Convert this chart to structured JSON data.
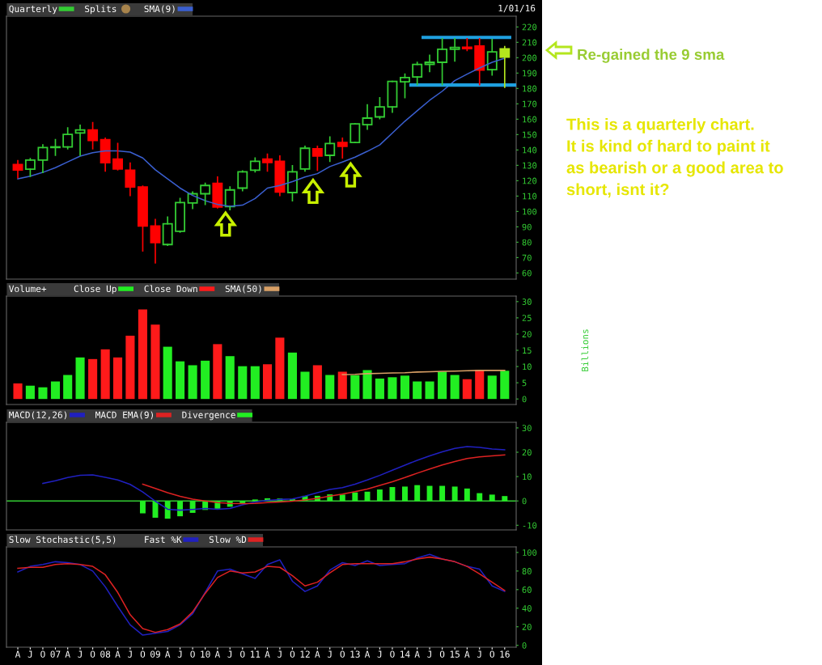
{
  "chart_data": [
    {
      "type": "candlestick",
      "legend": "top left",
      "tick_labels": "y",
      "x": [
        "2006-04",
        "2006-07",
        "2006-10",
        "2007-01",
        "2007-04",
        "2007-07",
        "2007-10",
        "2008-01",
        "2008-04",
        "2008-07",
        "2008-10",
        "2009-01",
        "2009-04",
        "2009-07",
        "2009-10",
        "2010-01",
        "2010-04",
        "2010-07",
        "2010-10",
        "2011-01",
        "2011-04",
        "2011-07",
        "2011-10",
        "2012-01",
        "2012-04",
        "2012-07",
        "2012-10",
        "2013-01",
        "2013-04",
        "2013-07",
        "2013-10",
        "2014-01",
        "2014-04",
        "2014-07",
        "2014-10",
        "2015-01",
        "2015-04",
        "2015-07",
        "2015-10",
        "2016-01"
      ],
      "xlim": [
        "2006-01-08",
        "2016-03-25"
      ],
      "ylim": [
        56,
        227
      ],
      "yticks": [
        60,
        70,
        80,
        90,
        100,
        110,
        120,
        130,
        140,
        150,
        160,
        170,
        180,
        190,
        200,
        210,
        220
      ],
      "series": [
        {
          "name": "Quarterly",
          "type": "candlestick",
          "color": "#33cc33",
          "ohlc": [
            [
              130.5,
              133,
              122,
              127
            ],
            [
              127.5,
              134.3,
              122.9,
              133.4
            ],
            [
              133.4,
              143.3,
              125.4,
              141.6
            ],
            [
              141.6,
              146.7,
              136.5,
              142
            ],
            [
              142,
              154.4,
              140.8,
              150.1
            ],
            [
              151,
              156.1,
              136.5,
              153
            ],
            [
              153,
              157.8,
              140.8,
              146.2
            ],
            [
              146.7,
              147.6,
              126.3,
              131.7
            ],
            [
              134,
              144.2,
              127.1,
              127.6
            ],
            [
              126.8,
              131.4,
              110.4,
              115.9
            ],
            [
              115.9,
              116.5,
              74.3,
              90.5
            ],
            [
              90.5,
              94.7,
              66.6,
              79.8
            ],
            [
              78.5,
              96.4,
              78,
              92
            ],
            [
              87.1,
              108.4,
              86.6,
              105.8
            ],
            [
              105.5,
              112.6,
              101.9,
              111.5
            ],
            [
              111.5,
              118.3,
              104.6,
              116.9
            ],
            [
              118.3,
              122.4,
              102.4,
              102.9
            ],
            [
              103.2,
              116,
              101.2,
              114
            ],
            [
              115.2,
              126.3,
              113.5,
              125.8
            ],
            [
              126.8,
              134.8,
              125.8,
              132.6
            ],
            [
              134,
              137.3,
              126.3,
              131.9
            ],
            [
              132.6,
              136,
              110.4,
              112.6
            ],
            [
              112.3,
              129.7,
              107,
              125.8
            ],
            [
              127.6,
              142.4,
              126.3,
              141.1
            ],
            [
              140.8,
              142.4,
              126.8,
              136
            ],
            [
              136.5,
              148.4,
              132.6,
              144.2
            ],
            [
              144.8,
              147.6,
              134.8,
              142.4
            ],
            [
              144.9,
              157,
              144.9,
              157
            ],
            [
              156.4,
              169.4,
              153.5,
              160.7
            ],
            [
              161.5,
              174,
              160.4,
              168
            ],
            [
              168,
              184.6,
              164.6,
              184.6
            ],
            [
              184.3,
              189.3,
              174,
              187.1
            ],
            [
              187.5,
              197,
              182.5,
              195.6
            ],
            [
              195.7,
              201.6,
              191,
              197
            ],
            [
              197,
              212.3,
              182.5,
              205.5
            ],
            [
              205.5,
              212.3,
              197.9,
              206.7
            ],
            [
              206.8,
              212.3,
              204.7,
              205.9
            ],
            [
              207.6,
              212.3,
              182.5,
              191.9
            ],
            [
              192.2,
              211.8,
              188.8,
              203.8
            ],
            [
              205.8,
              207.2,
              180.8,
              200.4
            ]
          ],
          "colors": [
            "#ff0000",
            "#33cc33",
            "#33cc33",
            "#33cc33",
            "#33cc33",
            "#33cc33",
            "#ff0000",
            "#ff0000",
            "#ff0000",
            "#ff0000",
            "#ff0000",
            "#ff0000",
            "#33cc33",
            "#33cc33",
            "#33cc33",
            "#33cc33",
            "#ff0000",
            "#33cc33",
            "#33cc33",
            "#33cc33",
            "#ff0000",
            "#ff0000",
            "#33cc33",
            "#33cc33",
            "#ff0000",
            "#33cc33",
            "#ff0000",
            "#33cc33",
            "#33cc33",
            "#33cc33",
            "#33cc33",
            "#33cc33",
            "#33cc33",
            "#33cc33",
            "#33cc33",
            "#33cc33",
            "#ff0000",
            "#ff0000",
            "#33cc33",
            "#b4e61e"
          ]
        },
        {
          "name": "Splits",
          "type": "scatter",
          "color": "#a8844c",
          "marker": "circle",
          "values": [
            null,
            null,
            null,
            null,
            null,
            null,
            null,
            null,
            null,
            null,
            null,
            null,
            null,
            null,
            null,
            null,
            null,
            null,
            null,
            null,
            null,
            null,
            null,
            null,
            null,
            null,
            null,
            null,
            null,
            null,
            null,
            null,
            null,
            null,
            null,
            null,
            null,
            null,
            null,
            null
          ]
        },
        {
          "name": "SMA(9)",
          "type": "line",
          "color": "#3a5fd0",
          "values": [
            121.2,
            122.9,
            125.4,
            128.5,
            132.2,
            136,
            138.2,
            139.4,
            139.4,
            138.6,
            134.8,
            127.1,
            121.2,
            115.2,
            110.4,
            107,
            104.6,
            103.3,
            104.1,
            108.4,
            115.2,
            116.9,
            119.4,
            122.4,
            124.6,
            129.2,
            132.2,
            135.3,
            139.1,
            143.3,
            151,
            158.7,
            165.5,
            172.3,
            178.2,
            185.1,
            189.3,
            193.3,
            197,
            199.6
          ]
        },
        {
          "type": "line",
          "color": "#1fa0e0",
          "x": [
            "2014-05-15",
            "2016-02-06"
          ],
          "values": [
            213.2,
            213.2
          ]
        },
        {
          "type": "line",
          "color": "#1fa0e0",
          "x": [
            "2014-02-15",
            "2016-03-20"
          ],
          "values": [
            182.2,
            182.2
          ]
        }
      ],
      "annotations": [
        "Re-gained the 9 sma",
        "This is a quarterly chart.\nIt is kind of hard to paint it\nas bearish or a good area to\nshort, isnt it?",
        "1/01/16"
      ]
    },
    {
      "type": "bar",
      "legend": "top left",
      "tick_labels": "y",
      "legend_title": "Volume+",
      "ylabel": "Billions",
      "x": [
        "2006-04",
        "2006-07",
        "2006-10",
        "2007-01",
        "2007-04",
        "2007-07",
        "2007-10",
        "2008-01",
        "2008-04",
        "2008-07",
        "2008-10",
        "2009-01",
        "2009-04",
        "2009-07",
        "2009-10",
        "2010-01",
        "2010-04",
        "2010-07",
        "2010-10",
        "2011-01",
        "2011-04",
        "2011-07",
        "2011-10",
        "2012-01",
        "2012-04",
        "2012-07",
        "2012-10",
        "2013-01",
        "2013-04",
        "2013-07",
        "2013-10",
        "2014-01",
        "2014-04",
        "2014-07",
        "2014-10",
        "2015-01",
        "2015-04",
        "2015-07",
        "2015-10",
        "2016-01"
      ],
      "xlim": [
        "2006-01-08",
        "2016-03-25"
      ],
      "ylim": [
        -1.7,
        31.7
      ],
      "yticks": [
        0,
        5,
        10,
        15,
        20,
        25,
        30
      ],
      "series": [
        {
          "name": "Close Up",
          "color": "#22ee22",
          "values": [
            null,
            4.1,
            3.6,
            5.4,
            7.4,
            12.8,
            null,
            null,
            null,
            null,
            null,
            null,
            16.1,
            11.6,
            10.4,
            11.8,
            null,
            13.2,
            10.1,
            10.1,
            null,
            null,
            14.3,
            8.4,
            null,
            7.4,
            null,
            7.3,
            8.9,
            6.3,
            6.7,
            7.2,
            5.4,
            5.4,
            8.4,
            7.4,
            null,
            null,
            7.2,
            8.7
          ]
        },
        {
          "name": "Close Down",
          "color": "#ff1a1a",
          "values": [
            4.8,
            null,
            null,
            null,
            null,
            null,
            12.3,
            15.3,
            12.8,
            19.5,
            27.6,
            22.9,
            null,
            null,
            null,
            null,
            16.9,
            null,
            null,
            null,
            10.7,
            18.9,
            null,
            null,
            10.4,
            null,
            8.4,
            null,
            null,
            null,
            null,
            null,
            null,
            null,
            null,
            null,
            6.1,
            9.0,
            null,
            null
          ]
        },
        {
          "name": "SMA(50)",
          "type": "line",
          "color": "#d9a066",
          "values": [
            null,
            null,
            null,
            null,
            null,
            null,
            null,
            null,
            null,
            null,
            null,
            null,
            null,
            null,
            null,
            null,
            null,
            null,
            null,
            null,
            null,
            null,
            null,
            null,
            null,
            null,
            7.5,
            7.6,
            7.8,
            7.9,
            8.0,
            8.1,
            8.3,
            8.4,
            8.5,
            8.6,
            8.7,
            8.8,
            8.8,
            8.8
          ]
        }
      ]
    },
    {
      "type": "line",
      "legend": "top left",
      "tick_labels": "y",
      "x": [
        "2006-10",
        "2007-01",
        "2007-04",
        "2007-07",
        "2007-10",
        "2008-01",
        "2008-04",
        "2008-07",
        "2008-10",
        "2009-01",
        "2009-04",
        "2009-07",
        "2009-10",
        "2010-01",
        "2010-04",
        "2010-07",
        "2010-10",
        "2011-01",
        "2011-04",
        "2011-07",
        "2011-10",
        "2012-01",
        "2012-04",
        "2012-07",
        "2012-10",
        "2013-01",
        "2013-04",
        "2013-07",
        "2013-10",
        "2014-01",
        "2014-04",
        "2014-07",
        "2014-10",
        "2015-01",
        "2015-04",
        "2015-07",
        "2015-10",
        "2016-01"
      ],
      "xlim": [
        "2006-01-08",
        "2016-03-25"
      ],
      "ylim": [
        -11.9,
        32.3
      ],
      "yticks": [
        -10,
        0,
        10,
        20,
        30
      ],
      "ref_lines": [
        {
          "axis": "y",
          "value": 0,
          "color": "#33cc33"
        }
      ],
      "series": [
        {
          "name": "MACD(12,26)",
          "color": "#2020c0",
          "values": [
            7.2,
            8.3,
            9.6,
            10.5,
            10.7,
            9.7,
            8.6,
            6.8,
            3.7,
            -0.1,
            -3.4,
            -3.8,
            -3.5,
            -3.1,
            -3.4,
            -3.1,
            -1.6,
            -0.4,
            0.2,
            0.6,
            0.8,
            2.0,
            3.4,
            4.7,
            5.5,
            6.9,
            8.6,
            10.5,
            12.6,
            14.7,
            16.7,
            18.5,
            20.2,
            21.6,
            22.3,
            22.0,
            21.3,
            21.0
          ]
        },
        {
          "name": "MACD EMA(9)",
          "color": "#dd2222",
          "values": [
            null,
            null,
            null,
            null,
            null,
            null,
            null,
            null,
            6.9,
            5.1,
            3.4,
            1.9,
            0.7,
            0.0,
            -0.7,
            -1.0,
            -1.1,
            -1.0,
            -0.7,
            -0.4,
            -0.1,
            0.4,
            1.1,
            2.0,
            2.8,
            3.8,
            4.9,
            6.4,
            7.9,
            9.6,
            11.4,
            13.1,
            14.8,
            16.2,
            17.4,
            18.1,
            18.5,
            18.9
          ]
        },
        {
          "name": "Divergence",
          "type": "bar",
          "color": "#22ee22",
          "values": [
            null,
            null,
            null,
            null,
            null,
            null,
            null,
            null,
            -5.1,
            -6.9,
            -7.3,
            -6.3,
            -4.9,
            -3.7,
            -3.2,
            -2.4,
            -1.3,
            0.6,
            1.1,
            1.0,
            0.7,
            2.1,
            2.1,
            2.7,
            2.6,
            3.5,
            3.8,
            4.7,
            5.7,
            5.9,
            6.5,
            6.2,
            6.2,
            5.9,
            5.1,
            3.2,
            2.6,
            2.0
          ]
        }
      ]
    },
    {
      "type": "line",
      "legend": "top left",
      "legend_title": "Slow Stochastic(5,5)",
      "x": [
        "2006-04",
        "2006-07",
        "2006-10",
        "2007-01",
        "2007-04",
        "2007-07",
        "2007-10",
        "2008-01",
        "2008-04",
        "2008-07",
        "2008-10",
        "2009-01",
        "2009-04",
        "2009-07",
        "2009-10",
        "2010-01",
        "2010-04",
        "2010-07",
        "2010-10",
        "2011-01",
        "2011-04",
        "2011-07",
        "2011-10",
        "2012-01",
        "2012-04",
        "2012-07",
        "2012-10",
        "2013-01",
        "2013-04",
        "2013-07",
        "2013-10",
        "2014-01",
        "2014-04",
        "2014-07",
        "2014-10",
        "2015-01",
        "2015-04",
        "2015-07",
        "2015-10",
        "2016-01"
      ],
      "xlim": [
        "2006-01-08",
        "2016-03-25"
      ],
      "ylim": [
        -2,
        106
      ],
      "yticks": [
        0,
        20,
        40,
        60,
        80,
        100
      ],
      "xticks": [
        {
          "value": "2006-04",
          "label": "A"
        },
        {
          "value": "2006-07",
          "label": "J"
        },
        {
          "value": "2006-10",
          "label": "O"
        },
        {
          "value": "2007-01",
          "label": "07"
        },
        {
          "value": "2007-04",
          "label": "A"
        },
        {
          "value": "2007-07",
          "label": "J"
        },
        {
          "value": "2007-10",
          "label": "O"
        },
        {
          "value": "2008-01",
          "label": "08"
        },
        {
          "value": "2008-04",
          "label": "A"
        },
        {
          "value": "2008-07",
          "label": "J"
        },
        {
          "value": "2008-10",
          "label": "O"
        },
        {
          "value": "2009-01",
          "label": "09"
        },
        {
          "value": "2009-04",
          "label": "A"
        },
        {
          "value": "2009-07",
          "label": "J"
        },
        {
          "value": "2009-10",
          "label": "O"
        },
        {
          "value": "2010-01",
          "label": "10"
        },
        {
          "value": "2010-04",
          "label": "A"
        },
        {
          "value": "2010-07",
          "label": "J"
        },
        {
          "value": "2010-10",
          "label": "O"
        },
        {
          "value": "2011-01",
          "label": "11"
        },
        {
          "value": "2011-04",
          "label": "A"
        },
        {
          "value": "2011-07",
          "label": "J"
        },
        {
          "value": "2011-10",
          "label": "O"
        },
        {
          "value": "2012-01",
          "label": "12"
        },
        {
          "value": "2012-04",
          "label": "A"
        },
        {
          "value": "2012-07",
          "label": "J"
        },
        {
          "value": "2012-10",
          "label": "O"
        },
        {
          "value": "2013-01",
          "label": "13"
        },
        {
          "value": "2013-04",
          "label": "A"
        },
        {
          "value": "2013-07",
          "label": "J"
        },
        {
          "value": "2013-10",
          "label": "O"
        },
        {
          "value": "2014-01",
          "label": "14"
        },
        {
          "value": "2014-04",
          "label": "A"
        },
        {
          "value": "2014-07",
          "label": "J"
        },
        {
          "value": "2014-10",
          "label": "O"
        },
        {
          "value": "2015-01",
          "label": "15"
        },
        {
          "value": "2015-04",
          "label": "A"
        },
        {
          "value": "2015-07",
          "label": "J"
        },
        {
          "value": "2015-10",
          "label": "O"
        },
        {
          "value": "2016-01",
          "label": "16"
        }
      ],
      "series": [
        {
          "name": "Fast %K",
          "color": "#2020c0",
          "values": [
            79,
            85,
            87,
            90,
            89,
            87,
            80,
            63,
            42,
            22,
            11,
            13,
            15,
            22,
            34,
            57,
            80,
            82,
            77,
            72,
            87,
            92,
            69,
            58,
            64,
            81,
            89,
            86,
            91,
            86,
            87,
            88,
            94,
            98,
            93,
            90,
            85,
            82,
            64,
            58
          ]
        },
        {
          "name": "Slow %D",
          "color": "#dd2222",
          "values": [
            83,
            84,
            84,
            87,
            88,
            87,
            85,
            76,
            57,
            33,
            18,
            14,
            17,
            23,
            36,
            56,
            73,
            80,
            78,
            79,
            85,
            84,
            75,
            64,
            68,
            78,
            87,
            88,
            88,
            88,
            88,
            90,
            93,
            95,
            93,
            90,
            85,
            77,
            68,
            59
          ]
        }
      ]
    }
  ]
}
